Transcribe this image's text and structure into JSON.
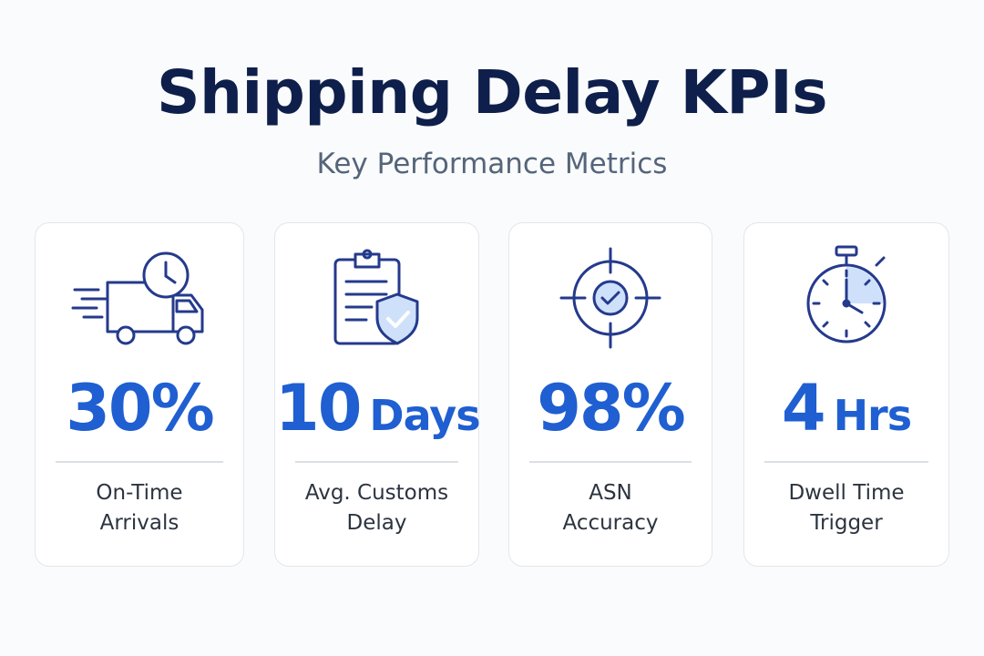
{
  "header": {
    "title": "Shipping Delay KPIs",
    "subtitle": "Key Performance Metrics"
  },
  "colors": {
    "title": "#0f1f4b",
    "accent": "#1f5fd1",
    "icon_stroke": "#243a8c",
    "icon_fill": "#cfe0fb"
  },
  "cards": [
    {
      "icon": "delivery-truck-clock-icon",
      "value": "30%",
      "unit": "",
      "label_line1": "On-Time",
      "label_line2": "Arrivals"
    },
    {
      "icon": "clipboard-shield-check-icon",
      "value": "10",
      "unit": "Days",
      "label_line1": "Avg. Customs",
      "label_line2": "Delay"
    },
    {
      "icon": "target-check-icon",
      "value": "98%",
      "unit": "",
      "label_line1": "ASN",
      "label_line2": "Accuracy"
    },
    {
      "icon": "stopwatch-icon",
      "value": "4",
      "unit": "Hrs",
      "label_line1": "Dwell Time",
      "label_line2": "Trigger"
    }
  ]
}
